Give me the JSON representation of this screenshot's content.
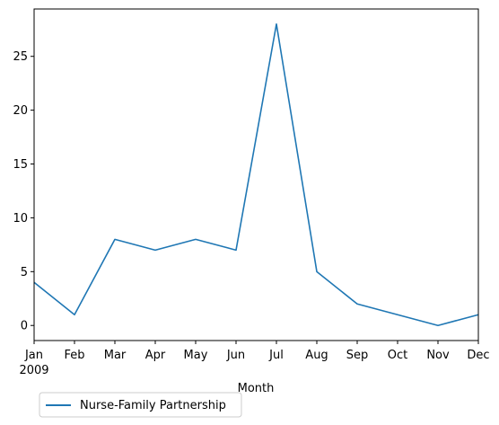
{
  "chart_data": {
    "type": "line",
    "x": [
      "Jan",
      "Feb",
      "Mar",
      "Apr",
      "May",
      "Jun",
      "Jul",
      "Aug",
      "Sep",
      "Oct",
      "Nov",
      "Dec"
    ],
    "x_sublabel_first": "2009",
    "series": [
      {
        "name": "Nurse-Family Partnership",
        "values": [
          4,
          1,
          8,
          7,
          8,
          7,
          28,
          5,
          2,
          1,
          0,
          1
        ],
        "color": "#1f77b4"
      }
    ],
    "xlabel": "Month",
    "ylabel": "",
    "ylim": [
      -1.4,
      29.4
    ],
    "yticks": [
      0,
      5,
      10,
      15,
      20,
      25
    ],
    "grid": false,
    "legend_position": "bottom-left, below axes"
  }
}
